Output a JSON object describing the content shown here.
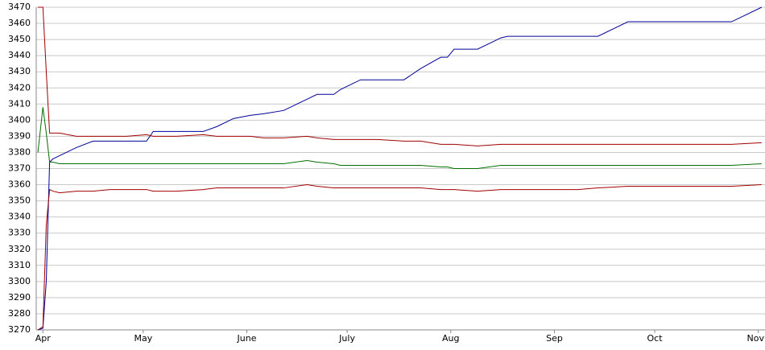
{
  "chart_data": {
    "type": "line",
    "x": [
      -1.5,
      0,
      1,
      2,
      3,
      5,
      10,
      15,
      20,
      25,
      31,
      33,
      40,
      48,
      52,
      57,
      62,
      66,
      72,
      79,
      82,
      87,
      89,
      95,
      100,
      108,
      113,
      119,
      121,
      123,
      130,
      137,
      139,
      150,
      160,
      166,
      175,
      185,
      195,
      206,
      215
    ],
    "series": [
      {
        "color": "#00009a",
        "values": [
          3270,
          3271,
          3300,
          3374,
          3376,
          3378,
          3383,
          3387,
          3387,
          3387,
          3387,
          3393,
          3393,
          3393,
          3396,
          3401,
          3403,
          3404,
          3406,
          3413,
          3416,
          3416,
          3419,
          3425,
          3425,
          3425,
          3432,
          3439,
          3439,
          3444,
          3444,
          3451,
          3452,
          3452,
          3452,
          3452,
          3461,
          3461,
          3461,
          3461,
          3470
        ]
      },
      {
        "color": "#a00000",
        "values": [
          3470,
          3470,
          3430,
          3392,
          3392,
          3392,
          3390,
          3390,
          3390,
          3390,
          3391,
          3390,
          3390,
          3391,
          3390,
          3390,
          3390,
          3389,
          3389,
          3390,
          3389,
          3388,
          3388,
          3388,
          3388,
          3387,
          3387,
          3385,
          3385,
          3385,
          3384,
          3385,
          3385,
          3385,
          3385,
          3385,
          3385,
          3385,
          3385,
          3385,
          3386
        ]
      },
      {
        "color": "#007000",
        "values": [
          3380,
          3408,
          3392,
          3374,
          3374,
          3373,
          3373,
          3373,
          3373,
          3373,
          3373,
          3373,
          3373,
          3373,
          3373,
          3373,
          3373,
          3373,
          3373,
          3375,
          3374,
          3373,
          3372,
          3372,
          3372,
          3372,
          3372,
          3371,
          3371,
          3370,
          3370,
          3372,
          3372,
          3372,
          3372,
          3372,
          3372,
          3372,
          3372,
          3372,
          3373
        ]
      },
      {
        "color": "#a00000",
        "values": [
          3270,
          3272,
          3335,
          3357,
          3356,
          3355,
          3356,
          3356,
          3357,
          3357,
          3357,
          3356,
          3356,
          3357,
          3358,
          3358,
          3358,
          3358,
          3358,
          3360,
          3359,
          3358,
          3358,
          3358,
          3358,
          3358,
          3358,
          3357,
          3357,
          3357,
          3356,
          3357,
          3357,
          3357,
          3357,
          3358,
          3359,
          3359,
          3359,
          3359,
          3360
        ]
      }
    ],
    "xlim": [
      -2,
      216
    ],
    "xticks": [
      {
        "value": 0,
        "label": "Apr"
      },
      {
        "value": 30,
        "label": "May"
      },
      {
        "value": 61,
        "label": "June"
      },
      {
        "value": 91,
        "label": "July"
      },
      {
        "value": 122,
        "label": "Aug"
      },
      {
        "value": 153,
        "label": "Sep"
      },
      {
        "value": 183,
        "label": "Oct"
      },
      {
        "value": 214,
        "label": "Nov"
      }
    ],
    "ylim": [
      3270,
      3470
    ],
    "yticks": [
      3270,
      3280,
      3290,
      3300,
      3310,
      3320,
      3330,
      3340,
      3350,
      3360,
      3370,
      3380,
      3390,
      3400,
      3410,
      3420,
      3430,
      3440,
      3450,
      3460,
      3470
    ],
    "grid": true
  }
}
